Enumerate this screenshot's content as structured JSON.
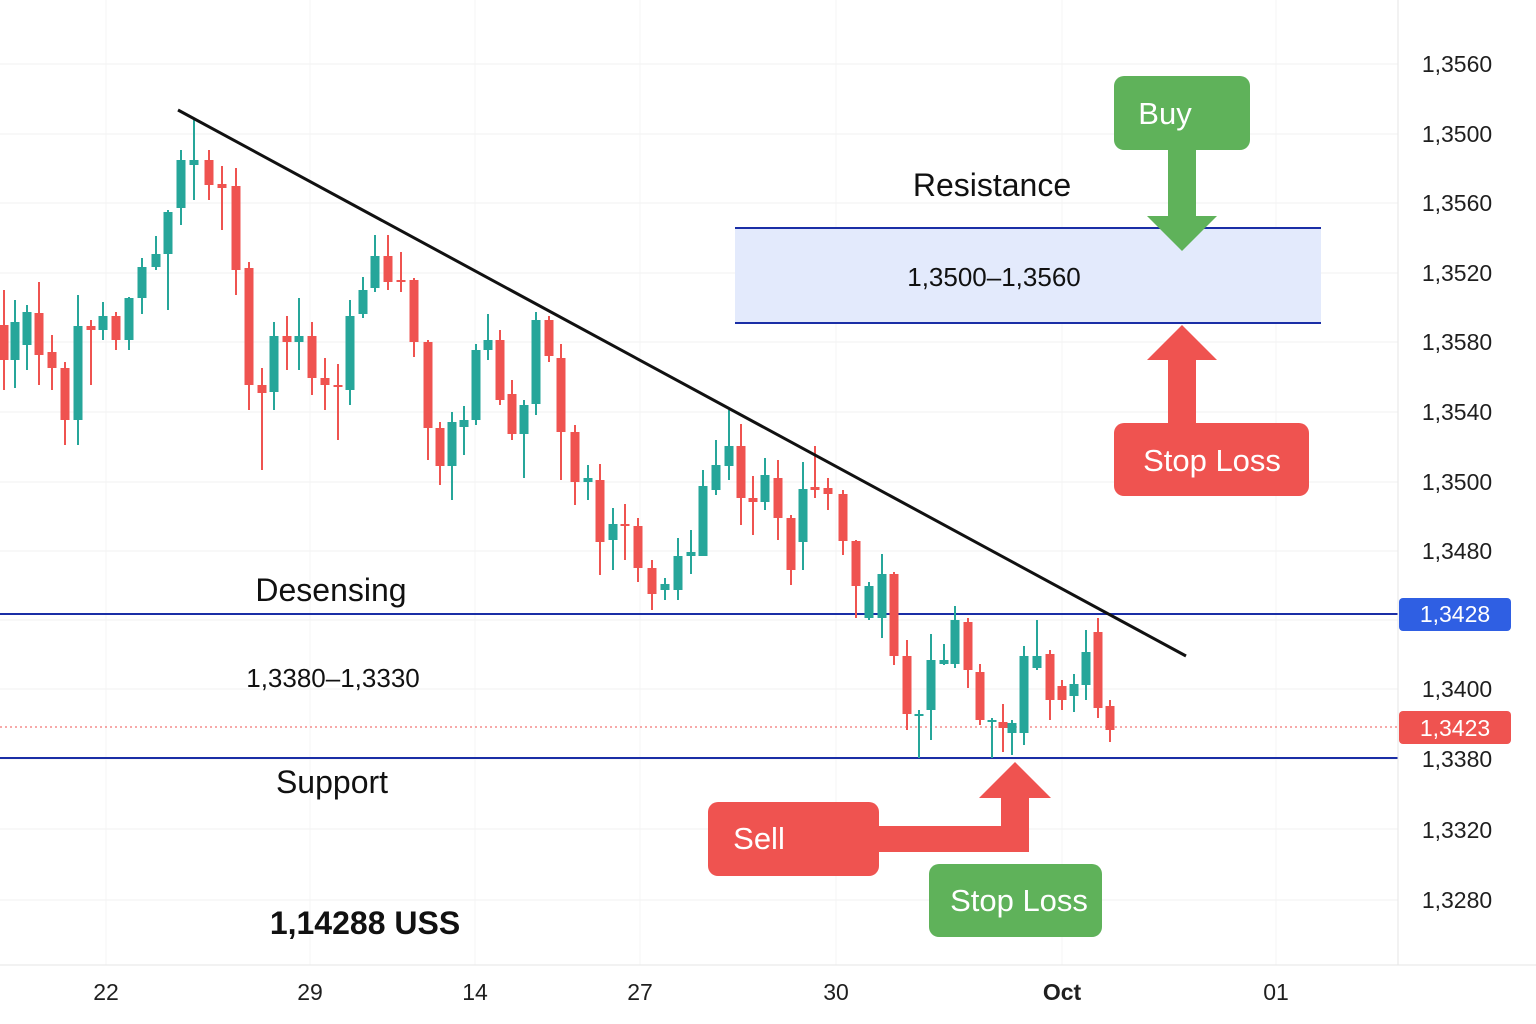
{
  "chart_data": {
    "type": "candlestick",
    "y_axis_labels": [
      "1,3560",
      "1,3500",
      "1,3560",
      "1,3520",
      "1,3580",
      "1,3540",
      "1,3500",
      "1,3480",
      "1,3400",
      "1,3380",
      "1,3320",
      "1,3280"
    ],
    "x_axis_labels": [
      {
        "text": "22",
        "bold": false
      },
      {
        "text": "29",
        "bold": false
      },
      {
        "text": "14",
        "bold": false
      },
      {
        "text": "27",
        "bold": false
      },
      {
        "text": "30",
        "bold": false
      },
      {
        "text": "Oct",
        "bold": true
      },
      {
        "text": "01",
        "bold": false
      }
    ],
    "price_badges": {
      "upper": {
        "text": "1,3428",
        "color": "#2f5fe3"
      },
      "current": {
        "text": "1,3423",
        "color": "#ef5350"
      }
    },
    "annotations": {
      "resistance_label": "Resistance",
      "resistance_range": "1,3500–1,3560",
      "desensing_label": "Desensing",
      "desensing_range": "1,3380–1,3330",
      "support_label": "Support",
      "price_caption": "1,14288 USS"
    },
    "signals": {
      "buy": "Buy",
      "stop_loss_upper": "Stop Loss",
      "sell": "Sell",
      "stop_loss_lower": "Stop Loss"
    },
    "colors": {
      "up": "#26a69a",
      "down": "#ef5350",
      "level_line": "#1a2ea6",
      "zone_fill": "#e3eafc",
      "trendline": "#111111",
      "green_signal": "#5fb25a",
      "red_signal": "#ef5350"
    }
  }
}
